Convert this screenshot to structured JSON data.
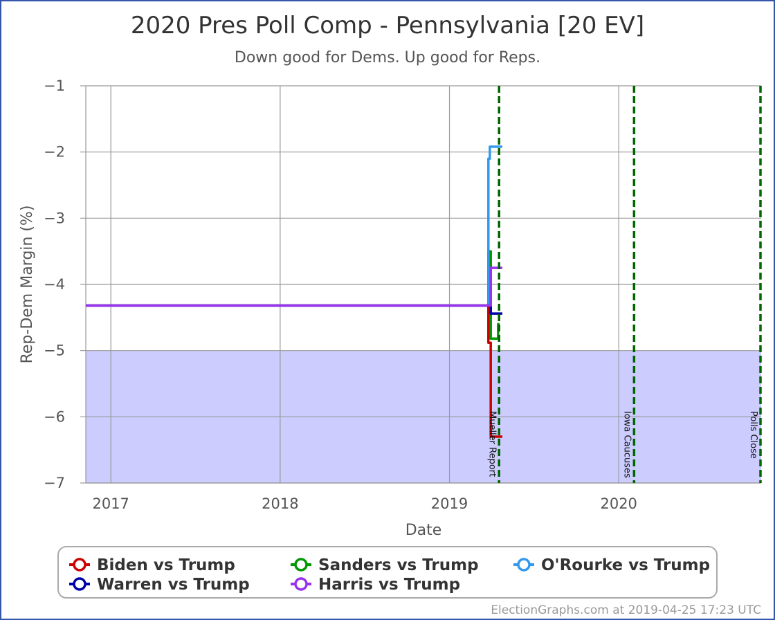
{
  "chart_data": {
    "type": "line",
    "title": "2020 Pres Poll Comp - Pennsylvania [20 EV]",
    "subtitle": "Down good for Dems. Up good for Reps.",
    "xlabel": "Date",
    "ylabel": "Rep-Dem Margin (%)",
    "xlim": [
      "2016-11-08",
      "2020-11-03"
    ],
    "ylim": [
      -7,
      -1
    ],
    "x_ticks": [
      {
        "date": "2017-01-01",
        "label": "2017"
      },
      {
        "date": "2018-01-01",
        "label": "2018"
      },
      {
        "date": "2019-01-01",
        "label": "2019"
      },
      {
        "date": "2020-01-01",
        "label": "2020"
      }
    ],
    "y_ticks": [
      {
        "value": -1,
        "label": "−1"
      },
      {
        "value": -2,
        "label": "−2"
      },
      {
        "value": -3,
        "label": "−3"
      },
      {
        "value": -4,
        "label": "−4"
      },
      {
        "value": -5,
        "label": "−5"
      },
      {
        "value": -6,
        "label": "−6"
      },
      {
        "value": -7,
        "label": "−7"
      }
    ],
    "grid": true,
    "shaded_region": {
      "from": -7,
      "to": -5,
      "color": "#ccccff"
    },
    "events": [
      {
        "date": "2019-04-18",
        "label": "Mueller Report"
      },
      {
        "date": "2020-02-03",
        "label": "Iowa Caucuses"
      },
      {
        "date": "2020-11-03",
        "label": "Polls Close"
      }
    ],
    "event_color": "#006600",
    "series": [
      {
        "name": "Biden vs Trump",
        "color": "#cc0000",
        "points": [
          [
            "2016-11-08",
            -4.32
          ],
          [
            "2019-03-26",
            -4.32
          ],
          [
            "2019-03-26",
            -4.88
          ],
          [
            "2019-03-31",
            -4.88
          ],
          [
            "2019-03-31",
            -6.3
          ],
          [
            "2019-04-25",
            -6.3
          ]
        ]
      },
      {
        "name": "Sanders vs Trump",
        "color": "#009900",
        "points": [
          [
            "2016-11-08",
            -4.32
          ],
          [
            "2019-03-26",
            -4.32
          ],
          [
            "2019-03-26",
            -3.5
          ],
          [
            "2019-03-31",
            -3.5
          ],
          [
            "2019-03-31",
            -4.82
          ],
          [
            "2019-04-16",
            -4.82
          ],
          [
            "2019-04-16",
            -4.6
          ],
          [
            "2019-04-19",
            -4.6
          ]
        ]
      },
      {
        "name": "O'Rourke vs Trump",
        "color": "#3399ee",
        "points": [
          [
            "2016-11-08",
            -4.32
          ],
          [
            "2019-03-26",
            -4.32
          ],
          [
            "2019-03-26",
            -2.1
          ],
          [
            "2019-03-29",
            -2.1
          ],
          [
            "2019-03-29",
            -1.92
          ],
          [
            "2019-04-25",
            -1.92
          ]
        ]
      },
      {
        "name": "Warren vs Trump",
        "color": "#0000aa",
        "points": [
          [
            "2016-11-08",
            -4.32
          ],
          [
            "2019-03-31",
            -4.32
          ],
          [
            "2019-03-31",
            -4.44
          ],
          [
            "2019-04-25",
            -4.44
          ]
        ]
      },
      {
        "name": "Harris vs Trump",
        "color": "#9933ee",
        "points": [
          [
            "2016-11-08",
            -4.32
          ],
          [
            "2019-03-31",
            -4.32
          ],
          [
            "2019-03-31",
            -3.75
          ],
          [
            "2019-04-25",
            -3.75
          ]
        ]
      }
    ]
  },
  "footer": "ElectionGraphs.com at 2019-04-25 17:23 UTC"
}
